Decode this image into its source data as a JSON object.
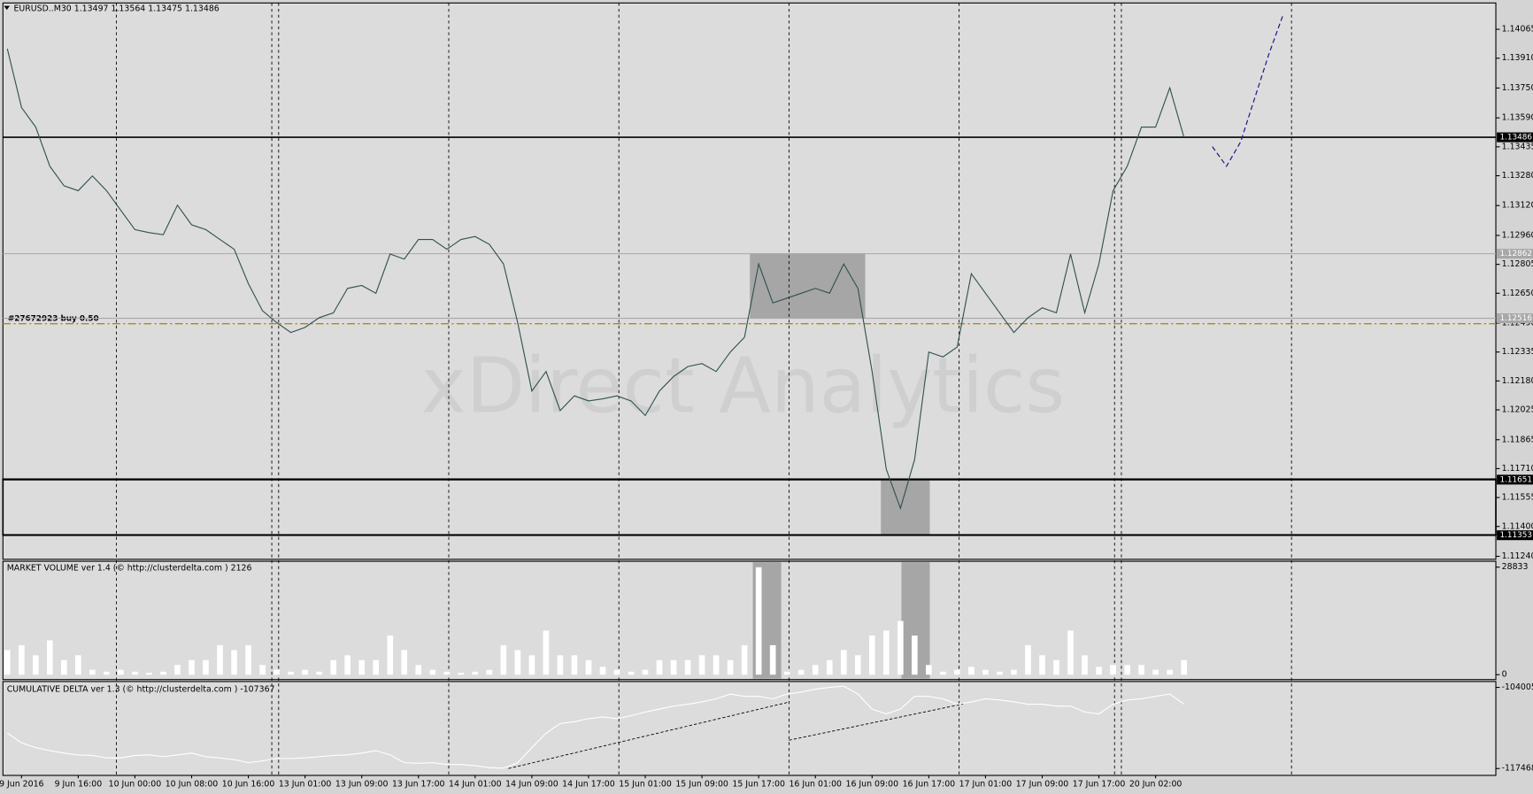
{
  "chart_data": [
    {
      "type": "line",
      "title": "EURUSD..M30  1.13497 1.13564 1.13475 1.13486",
      "watermark": "xDirect Analytics",
      "categories": [
        null,
        "9 Jun 2016",
        null,
        null,
        null,
        "9 Jun 16:00",
        null,
        null,
        null,
        "10 Jun 00:00",
        null,
        null,
        null,
        "10 Jun 08:00",
        null,
        null,
        null,
        "10 Jun 16:00",
        null,
        null,
        null,
        "13 Jun 01:00",
        null,
        null,
        null,
        "13 Jun 09:00",
        null,
        null,
        null,
        "13 Jun 17:00",
        null,
        null,
        null,
        "14 Jun 01:00",
        null,
        null,
        null,
        "14 Jun 09:00",
        null,
        null,
        null,
        "14 Jun 17:00",
        null,
        null,
        null,
        "15 Jun 01:00",
        null,
        null,
        null,
        "15 Jun 09:00",
        null,
        null,
        null,
        "15 Jun 17:00",
        null,
        null,
        null,
        "16 Jun 01:00",
        null,
        null,
        null,
        "16 Jun 09:00",
        null,
        null,
        null,
        "16 Jun 17:00",
        null,
        null,
        null,
        "17 Jun 01:00",
        null,
        null,
        null,
        "17 Jun 09:00",
        null,
        null,
        null,
        "17 Jun 17:00",
        null,
        null,
        null,
        "20 Jun 02:00",
        null,
        null,
        null,
        null,
        null,
        null,
        null,
        null,
        null
      ],
      "series": [
        {
          "color": "#2f4f4f",
          "values": [
            1.1396,
            1.13646,
            1.13541,
            1.13331,
            1.13226,
            1.132,
            1.13279,
            1.132,
            1.13095,
            1.12991,
            1.12975,
            1.12964,
            1.13122,
            1.13017,
            1.12991,
            1.12938,
            1.12886,
            1.12702,
            1.12556,
            1.12493,
            1.1244,
            1.12467,
            1.12519,
            1.12545,
            1.12676,
            1.12692,
            1.1265,
            1.1286,
            1.12833,
            1.12938,
            1.12938,
            1.12886,
            1.12938,
            1.12954,
            1.12912,
            1.12807,
            1.12493,
            1.12126,
            1.12231,
            1.12021,
            1.121,
            1.12073,
            1.12084,
            1.121,
            1.12073,
            1.11995,
            1.12126,
            1.12204,
            1.12257,
            1.12273,
            1.12231,
            1.12335,
            1.12414,
            1.12807,
            1.12598,
            1.12624,
            1.1265,
            1.12676,
            1.1265,
            1.12807,
            1.12676,
            1.12231,
            1.11707,
            1.11497,
            1.11759,
            1.12335,
            1.12309,
            1.12362,
            1.12755,
            1.1265,
            1.12545,
            1.1244,
            1.12519,
            1.12572,
            1.12545,
            1.1286,
            1.12545,
            1.12807,
            1.132,
            1.13331,
            1.13541,
            1.13541,
            1.13751,
            1.13486,
            null,
            null,
            null,
            null,
            null,
            null,
            null
          ]
        },
        {
          "color": "#1a1a8c",
          "dashed": true,
          "values": [
            null,
            null,
            null,
            null,
            null,
            null,
            null,
            null,
            null,
            null,
            null,
            null,
            null,
            null,
            null,
            null,
            null,
            null,
            null,
            null,
            null,
            null,
            null,
            null,
            null,
            null,
            null,
            null,
            null,
            null,
            null,
            null,
            null,
            null,
            null,
            null,
            null,
            null,
            null,
            null,
            null,
            null,
            null,
            null,
            null,
            null,
            null,
            null,
            null,
            null,
            null,
            null,
            null,
            null,
            null,
            null,
            null,
            null,
            null,
            null,
            null,
            null,
            null,
            null,
            null,
            null,
            null,
            null,
            null,
            null,
            null,
            null,
            null,
            null,
            null,
            null,
            null,
            null,
            null,
            null,
            null,
            null,
            null,
            null,
            null,
            1.13436,
            1.13331,
            1.13462,
            1.13698,
            1.13934,
            1.14144
          ]
        }
      ],
      "ylim": [
        1.11224,
        1.14206
      ],
      "yticks": [
        1.14065,
        {
          "value": 1.1391,
          "label": "1.13910"
        },
        {
          "value": 1.1375,
          "label": "1.13750"
        },
        {
          "value": 1.1359,
          "label": "1.13590"
        },
        1.13435,
        {
          "value": 1.1328,
          "label": "1.13280"
        },
        {
          "value": 1.1312,
          "label": "1.13120"
        },
        {
          "value": 1.1296,
          "label": "1.12960"
        },
        1.12805,
        {
          "value": 1.1265,
          "label": "1.12650"
        },
        {
          "value": 1.1249,
          "label": "1.12490"
        },
        1.12335,
        {
          "value": 1.1218,
          "label": "1.12180"
        },
        1.12025,
        1.11865,
        {
          "value": 1.1171,
          "label": "1.11710"
        },
        1.11555,
        {
          "value": 1.114,
          "label": "1.11400"
        },
        {
          "value": 1.1124,
          "label": "1.11240"
        }
      ],
      "hlines": [
        1.13486,
        1.12862,
        1.12516,
        1.11651,
        1.11353
      ],
      "hline_colors": [
        "#000000",
        "#a8a8a8",
        "#a8a8a8",
        "#000000",
        "#000000"
      ],
      "order": {
        "label": "#27672923 buy 0.50",
        "price": 1.12487
      }
    },
    {
      "type": "bar",
      "title": "MARKET VOLUME ver 1.4 (© http://clusterdelta.com ) 2126",
      "color": "#ffffff",
      "values": [
        6600,
        7900,
        5200,
        9200,
        3900,
        5200,
        1300,
        800,
        1300,
        800,
        500,
        800,
        2600,
        3900,
        3900,
        7900,
        6600,
        7900,
        2600,
        1300,
        800,
        1300,
        800,
        3900,
        5200,
        3900,
        3900,
        10500,
        6600,
        2600,
        1300,
        800,
        500,
        800,
        1300,
        7900,
        6600,
        5200,
        11800,
        5200,
        5200,
        3900,
        2100,
        1300,
        800,
        1300,
        3900,
        3900,
        3900,
        5200,
        5200,
        3900,
        7900,
        28800,
        7900,
        800,
        1300,
        2600,
        3900,
        6600,
        5200,
        10500,
        11800,
        14400,
        10500,
        2600,
        800,
        1300,
        2100,
        1300,
        800,
        1300,
        7900,
        5200,
        3900,
        11800,
        5200,
        2100,
        2600,
        2600,
        2600,
        1300,
        1300,
        3900,
        null,
        null,
        null,
        null,
        null,
        null,
        null
      ],
      "ylim": [
        0,
        28833
      ],
      "yticks": [
        0,
        28833
      ]
    },
    {
      "type": "line",
      "title": "CUMULATIVE DELTA ver 1.3 (© http://clusterdelta.com ) -107367",
      "color": "#ffffff",
      "values": [
        -111600,
        -113200,
        -114000,
        -114500,
        -114900,
        -115200,
        -115300,
        -115700,
        -115700,
        -115300,
        -115200,
        -115500,
        -115200,
        -114900,
        -115500,
        -115700,
        -116000,
        -116500,
        -116200,
        -115800,
        -115800,
        -115700,
        -115500,
        -115300,
        -115200,
        -114900,
        -114500,
        -115200,
        -116500,
        -116600,
        -116500,
        -116800,
        -116800,
        -117000,
        -117300,
        -117400,
        -116500,
        -114000,
        -111600,
        -110000,
        -109700,
        -109200,
        -108900,
        -109200,
        -108700,
        -108100,
        -107600,
        -107100,
        -106800,
        -106400,
        -105900,
        -105100,
        -105500,
        -105500,
        -105900,
        -105100,
        -104800,
        -104300,
        -104000,
        -103800,
        -105100,
        -107600,
        -108400,
        -107600,
        -105500,
        -105500,
        -105900,
        -106800,
        -106400,
        -105900,
        -106100,
        -106400,
        -106800,
        -106800,
        -107100,
        -107100,
        -108100,
        -108400,
        -106800,
        -106100,
        -105900,
        -105500,
        -105100,
        -106800,
        null,
        null,
        null,
        null,
        null,
        null,
        null
      ],
      "ylim": [
        -117468,
        -104005
      ],
      "yticks": [
        -117468,
        -104005
      ]
    }
  ]
}
